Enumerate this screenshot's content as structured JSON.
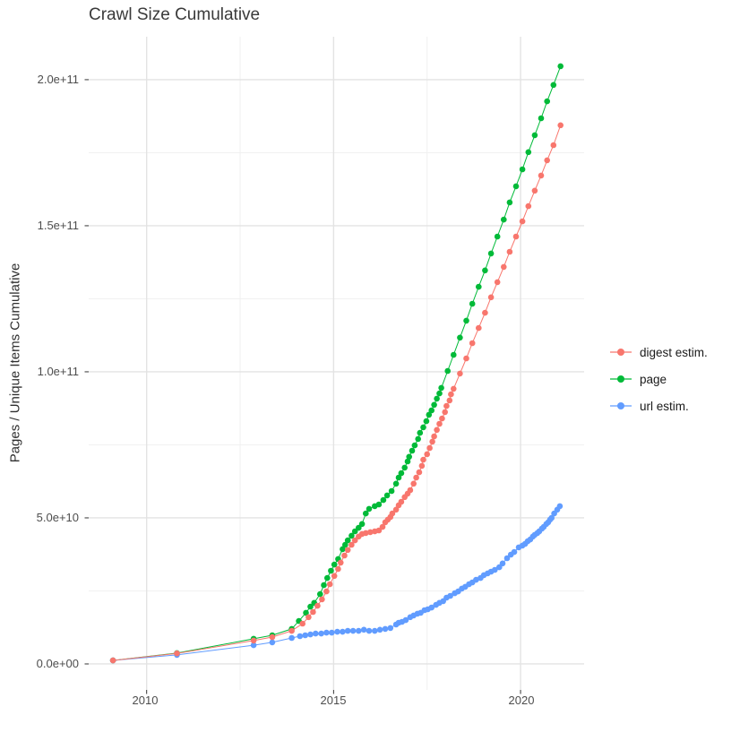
{
  "page": {
    "title": "Crawl Size Cumulative"
  },
  "chart_data": {
    "type": "scatter",
    "title": "Crawl Size Cumulative",
    "xlabel": "",
    "ylabel": "Pages / Unique Items Cumulative",
    "value_unit": "1e10 pages/items (value 20.46 = 2.046e+11)",
    "xlim": [
      2008.45,
      2021.7
    ],
    "ylim": [
      -0.89,
      21.47
    ],
    "grid": true,
    "legend_position": "right",
    "x_ticks": [
      {
        "value": 2010,
        "label": "2010"
      },
      {
        "value": 2015,
        "label": "2015"
      },
      {
        "value": 2020,
        "label": "2020"
      }
    ],
    "x_minor": [
      2012.5,
      2017.5
    ],
    "y_ticks": [
      {
        "value": 0,
        "label": "0.0e+00"
      },
      {
        "value": 5,
        "label": "5.0e+10"
      },
      {
        "value": 10,
        "label": "1.0e+11"
      },
      {
        "value": 15,
        "label": "1.5e+11"
      },
      {
        "value": 20,
        "label": "2.0e+11"
      }
    ],
    "y_minor": [
      2.5,
      7.5,
      12.5,
      17.5
    ],
    "series": [
      {
        "name": "digest estim.",
        "color": "#F8766D",
        "points": [
          [
            2009.1,
            0.12
          ],
          [
            2010.81,
            0.36
          ],
          [
            2012.86,
            0.8
          ],
          [
            2013.36,
            0.92
          ],
          [
            2013.88,
            1.13
          ],
          [
            2014.17,
            1.38
          ],
          [
            2014.33,
            1.6
          ],
          [
            2014.45,
            1.78
          ],
          [
            2014.57,
            1.99
          ],
          [
            2014.69,
            2.21
          ],
          [
            2014.81,
            2.48
          ],
          [
            2014.9,
            2.73
          ],
          [
            2015.02,
            3.01
          ],
          [
            2015.12,
            3.25
          ],
          [
            2015.19,
            3.47
          ],
          [
            2015.29,
            3.71
          ],
          [
            2015.38,
            3.9
          ],
          [
            2015.48,
            4.08
          ],
          [
            2015.57,
            4.23
          ],
          [
            2015.67,
            4.36
          ],
          [
            2015.76,
            4.45
          ],
          [
            2015.86,
            4.48
          ],
          [
            2015.98,
            4.51
          ],
          [
            2016.1,
            4.54
          ],
          [
            2016.21,
            4.57
          ],
          [
            2016.31,
            4.69
          ],
          [
            2016.38,
            4.85
          ],
          [
            2016.45,
            4.94
          ],
          [
            2016.52,
            5.03
          ],
          [
            2016.57,
            5.15
          ],
          [
            2016.67,
            5.28
          ],
          [
            2016.74,
            5.43
          ],
          [
            2016.81,
            5.55
          ],
          [
            2016.9,
            5.71
          ],
          [
            2016.98,
            5.83
          ],
          [
            2017.05,
            5.95
          ],
          [
            2017.14,
            6.17
          ],
          [
            2017.21,
            6.38
          ],
          [
            2017.29,
            6.56
          ],
          [
            2017.36,
            6.78
          ],
          [
            2017.4,
            6.99
          ],
          [
            2017.5,
            7.18
          ],
          [
            2017.57,
            7.39
          ],
          [
            2017.64,
            7.61
          ],
          [
            2017.69,
            7.79
          ],
          [
            2017.76,
            8.01
          ],
          [
            2017.83,
            8.22
          ],
          [
            2017.9,
            8.4
          ],
          [
            2017.98,
            8.62
          ],
          [
            2018.02,
            8.83
          ],
          [
            2018.1,
            9.02
          ],
          [
            2018.14,
            9.23
          ],
          [
            2018.21,
            9.42
          ],
          [
            2018.38,
            9.94
          ],
          [
            2018.55,
            10.46
          ],
          [
            2018.71,
            10.98
          ],
          [
            2018.88,
            11.5
          ],
          [
            2019.05,
            12.02
          ],
          [
            2019.21,
            12.55
          ],
          [
            2019.38,
            13.07
          ],
          [
            2019.55,
            13.59
          ],
          [
            2019.71,
            14.11
          ],
          [
            2019.88,
            14.63
          ],
          [
            2020.05,
            15.15
          ],
          [
            2020.21,
            15.67
          ],
          [
            2020.38,
            16.2
          ],
          [
            2020.55,
            16.72
          ],
          [
            2020.71,
            17.24
          ],
          [
            2020.88,
            17.76
          ],
          [
            2021.07,
            18.44
          ]
        ]
      },
      {
        "name": "page",
        "color": "#00BA38",
        "points": [
          [
            2009.1,
            0.12
          ],
          [
            2010.81,
            0.37
          ],
          [
            2012.86,
            0.86
          ],
          [
            2013.36,
            0.98
          ],
          [
            2013.88,
            1.2
          ],
          [
            2014.07,
            1.47
          ],
          [
            2014.26,
            1.75
          ],
          [
            2014.38,
            1.96
          ],
          [
            2014.48,
            2.09
          ],
          [
            2014.64,
            2.39
          ],
          [
            2014.74,
            2.7
          ],
          [
            2014.83,
            2.94
          ],
          [
            2014.93,
            3.19
          ],
          [
            2015.02,
            3.4
          ],
          [
            2015.12,
            3.59
          ],
          [
            2015.24,
            3.93
          ],
          [
            2015.31,
            4.08
          ],
          [
            2015.38,
            4.23
          ],
          [
            2015.48,
            4.39
          ],
          [
            2015.57,
            4.54
          ],
          [
            2015.67,
            4.66
          ],
          [
            2015.76,
            4.79
          ],
          [
            2015.86,
            5.15
          ],
          [
            2015.95,
            5.31
          ],
          [
            2016.1,
            5.4
          ],
          [
            2016.21,
            5.46
          ],
          [
            2016.33,
            5.61
          ],
          [
            2016.43,
            5.77
          ],
          [
            2016.55,
            5.92
          ],
          [
            2016.67,
            6.17
          ],
          [
            2016.74,
            6.38
          ],
          [
            2016.81,
            6.53
          ],
          [
            2016.9,
            6.72
          ],
          [
            2016.98,
            6.93
          ],
          [
            2017.02,
            7.09
          ],
          [
            2017.1,
            7.3
          ],
          [
            2017.17,
            7.48
          ],
          [
            2017.26,
            7.7
          ],
          [
            2017.31,
            7.91
          ],
          [
            2017.4,
            8.1
          ],
          [
            2017.48,
            8.31
          ],
          [
            2017.55,
            8.53
          ],
          [
            2017.62,
            8.68
          ],
          [
            2017.69,
            8.87
          ],
          [
            2017.76,
            9.08
          ],
          [
            2017.83,
            9.26
          ],
          [
            2017.88,
            9.45
          ],
          [
            2018.05,
            10.03
          ],
          [
            2018.21,
            10.58
          ],
          [
            2018.38,
            11.17
          ],
          [
            2018.55,
            11.75
          ],
          [
            2018.71,
            12.33
          ],
          [
            2018.88,
            12.91
          ],
          [
            2019.05,
            13.47
          ],
          [
            2019.21,
            14.05
          ],
          [
            2019.38,
            14.63
          ],
          [
            2019.55,
            15.21
          ],
          [
            2019.71,
            15.8
          ],
          [
            2019.88,
            16.35
          ],
          [
            2020.05,
            16.93
          ],
          [
            2020.21,
            17.52
          ],
          [
            2020.38,
            18.1
          ],
          [
            2020.55,
            18.68
          ],
          [
            2020.71,
            19.26
          ],
          [
            2020.88,
            19.82
          ],
          [
            2021.07,
            20.46
          ]
        ]
      },
      {
        "name": "url estim.",
        "color": "#619CFF",
        "points": [
          [
            2009.1,
            0.12
          ],
          [
            2010.81,
            0.31
          ],
          [
            2012.86,
            0.64
          ],
          [
            2013.36,
            0.74
          ],
          [
            2013.88,
            0.89
          ],
          [
            2014.1,
            0.95
          ],
          [
            2014.24,
            0.98
          ],
          [
            2014.38,
            1.01
          ],
          [
            2014.52,
            1.04
          ],
          [
            2014.67,
            1.04
          ],
          [
            2014.81,
            1.07
          ],
          [
            2014.95,
            1.07
          ],
          [
            2015.1,
            1.1
          ],
          [
            2015.24,
            1.1
          ],
          [
            2015.38,
            1.13
          ],
          [
            2015.52,
            1.13
          ],
          [
            2015.67,
            1.13
          ],
          [
            2015.81,
            1.17
          ],
          [
            2015.95,
            1.13
          ],
          [
            2016.1,
            1.13
          ],
          [
            2016.24,
            1.17
          ],
          [
            2016.38,
            1.2
          ],
          [
            2016.52,
            1.23
          ],
          [
            2016.67,
            1.35
          ],
          [
            2016.74,
            1.41
          ],
          [
            2016.83,
            1.44
          ],
          [
            2016.93,
            1.5
          ],
          [
            2017.05,
            1.6
          ],
          [
            2017.14,
            1.66
          ],
          [
            2017.24,
            1.72
          ],
          [
            2017.33,
            1.75
          ],
          [
            2017.43,
            1.84
          ],
          [
            2017.52,
            1.87
          ],
          [
            2017.62,
            1.93
          ],
          [
            2017.74,
            2.02
          ],
          [
            2017.83,
            2.09
          ],
          [
            2017.93,
            2.15
          ],
          [
            2018.02,
            2.27
          ],
          [
            2018.12,
            2.33
          ],
          [
            2018.24,
            2.42
          ],
          [
            2018.33,
            2.48
          ],
          [
            2018.43,
            2.58
          ],
          [
            2018.52,
            2.64
          ],
          [
            2018.62,
            2.73
          ],
          [
            2018.71,
            2.79
          ],
          [
            2018.81,
            2.88
          ],
          [
            2018.93,
            2.94
          ],
          [
            2019.02,
            3.04
          ],
          [
            2019.12,
            3.1
          ],
          [
            2019.21,
            3.16
          ],
          [
            2019.31,
            3.22
          ],
          [
            2019.43,
            3.31
          ],
          [
            2019.52,
            3.44
          ],
          [
            2019.64,
            3.62
          ],
          [
            2019.74,
            3.74
          ],
          [
            2019.83,
            3.83
          ],
          [
            2019.95,
            3.99
          ],
          [
            2020.05,
            4.05
          ],
          [
            2020.12,
            4.11
          ],
          [
            2020.19,
            4.2
          ],
          [
            2020.26,
            4.26
          ],
          [
            2020.33,
            4.36
          ],
          [
            2020.38,
            4.42
          ],
          [
            2020.45,
            4.48
          ],
          [
            2020.5,
            4.54
          ],
          [
            2020.57,
            4.63
          ],
          [
            2020.62,
            4.69
          ],
          [
            2020.69,
            4.79
          ],
          [
            2020.74,
            4.85
          ],
          [
            2020.79,
            4.94
          ],
          [
            2020.83,
            5.0
          ],
          [
            2020.9,
            5.15
          ],
          [
            2020.98,
            5.28
          ],
          [
            2021.05,
            5.4
          ]
        ]
      }
    ],
    "colors": {
      "digest_estim": "#F8766D",
      "page": "#00BA38",
      "url_estim": "#619CFF"
    }
  }
}
